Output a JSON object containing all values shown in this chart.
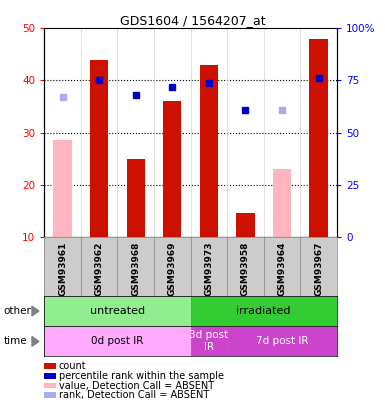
{
  "title": "GDS1604 / 1564207_at",
  "samples": [
    "GSM93961",
    "GSM93962",
    "GSM93968",
    "GSM93969",
    "GSM93973",
    "GSM93958",
    "GSM93964",
    "GSM93967"
  ],
  "count_values": [
    null,
    44.0,
    25.0,
    36.0,
    43.0,
    14.5,
    null,
    48.0
  ],
  "count_absent": [
    28.5,
    null,
    null,
    null,
    null,
    null,
    23.0,
    null
  ],
  "rank_values": [
    null,
    75.0,
    68.0,
    72.0,
    74.0,
    61.0,
    null,
    76.0
  ],
  "rank_absent": [
    67.0,
    null,
    null,
    null,
    null,
    null,
    61.0,
    null
  ],
  "ylim_left": [
    10,
    50
  ],
  "ylim_right": [
    0,
    100
  ],
  "yticks_left": [
    10,
    20,
    30,
    40,
    50
  ],
  "yticks_right": [
    0,
    25,
    50,
    75,
    100
  ],
  "ytick_labels_left": [
    "10",
    "20",
    "30",
    "40",
    "50"
  ],
  "ytick_labels_right": [
    "0",
    "25",
    "50",
    "75",
    "100%"
  ],
  "other_groups": [
    {
      "label": "untreated",
      "start": 0,
      "end": 4,
      "color": "#90EE90"
    },
    {
      "label": "irradiated",
      "start": 4,
      "end": 8,
      "color": "#33CC33"
    }
  ],
  "time_groups": [
    {
      "label": "0d post IR",
      "start": 0,
      "end": 4,
      "color": "#FFAAFF"
    },
    {
      "label": "3d post\nIR",
      "start": 4,
      "end": 5,
      "color": "#CC44CC"
    },
    {
      "label": "7d post IR",
      "start": 5,
      "end": 8,
      "color": "#CC44CC"
    }
  ],
  "bar_color_count": "#CC1100",
  "bar_color_absent": "#FFB6C1",
  "marker_color_present": "#0000CC",
  "marker_color_absent": "#AAAAEE",
  "bg_color": "#CCCCCC",
  "plot_bg": "#FFFFFF",
  "legend_items": [
    {
      "label": "count",
      "color": "#CC1100"
    },
    {
      "label": "percentile rank within the sample",
      "color": "#0000CC"
    },
    {
      "label": "value, Detection Call = ABSENT",
      "color": "#FFB6C1"
    },
    {
      "label": "rank, Detection Call = ABSENT",
      "color": "#AAAAEE"
    }
  ]
}
